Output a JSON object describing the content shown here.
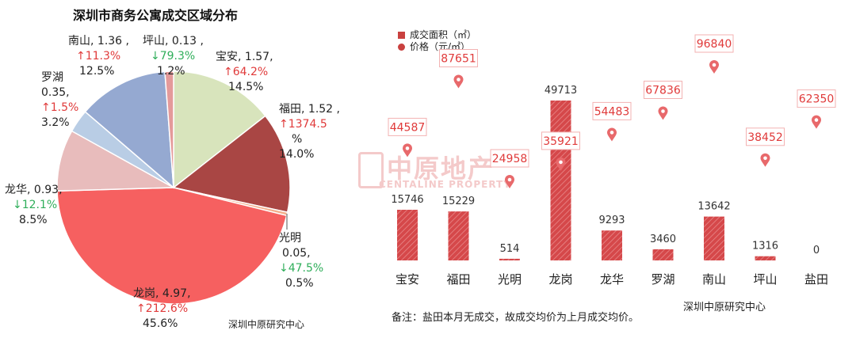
{
  "pie": {
    "title": "深圳市商务公寓成交区域分布",
    "source": "深圳中原研究中心",
    "slices": [
      {
        "name": "宝安",
        "value": 1.57,
        "change": "64.2%",
        "dir": "up",
        "pct": "14.5%",
        "color": "#d8e4bc"
      },
      {
        "name": "福田",
        "value": 1.52,
        "change": "1374.5",
        "change_tail": "%",
        "dir": "up",
        "pct": "14.0%",
        "color": "#a94644"
      },
      {
        "name": "光明",
        "value": 0.05,
        "change": "47.5%",
        "dir": "down",
        "pct": "0.5%",
        "color": "#f4ae8b"
      },
      {
        "name": "龙岗",
        "value": 4.97,
        "change": "212.6%",
        "dir": "up",
        "pct": "45.6%",
        "color": "#f66060"
      },
      {
        "name": "龙华",
        "value": 0.93,
        "change": "12.1%",
        "dir": "down",
        "pct": "8.5%",
        "color": "#e8bcbc"
      },
      {
        "name": "罗湖",
        "value": 0.35,
        "change": "1.5%",
        "dir": "up",
        "pct": "3.2%",
        "color": "#b9cde5"
      },
      {
        "name": "南山",
        "value": 1.36,
        "change": "11.3%",
        "dir": "up",
        "pct": "12.5%",
        "color": "#95a9d1"
      },
      {
        "name": "坪山",
        "value": 0.13,
        "change": "79.3%",
        "dir": "down",
        "pct": "1.2%",
        "color": "#e49a9a"
      }
    ]
  },
  "bar": {
    "legend_area": "成交面积（㎡）",
    "legend_price": "价格（元/㎡）",
    "watermark": "中原地产",
    "watermark_en": "CENTALINE PROPERTY",
    "note": "备注：盐田本月无成交，故成交均价为上月成交均价。",
    "source": "深圳中原研究中心"
  },
  "chart_data": {
    "type": "bar",
    "categories": [
      "宝安",
      "福田",
      "光明",
      "龙岗",
      "龙华",
      "罗湖",
      "南山",
      "坪山",
      "盐田"
    ],
    "series": [
      {
        "name": "成交面积（㎡）",
        "type": "bar",
        "values": [
          15746,
          15229,
          514,
          49713,
          9293,
          3460,
          13642,
          1316,
          0
        ]
      },
      {
        "name": "价格（元/㎡）",
        "type": "scatter",
        "values": [
          44587,
          87651,
          24958,
          35921,
          54483,
          67836,
          96840,
          38452,
          62350
        ]
      }
    ],
    "pie_series": {
      "name": "成交区域分布",
      "categories": [
        "宝安",
        "福田",
        "光明",
        "龙岗",
        "龙华",
        "罗湖",
        "南山",
        "坪山"
      ],
      "values": [
        1.57,
        1.52,
        0.05,
        4.97,
        0.93,
        0.35,
        1.36,
        0.13
      ],
      "shares_pct": [
        14.5,
        14.0,
        0.5,
        45.6,
        8.5,
        3.2,
        12.5,
        1.2
      ]
    },
    "colors": {
      "bar": "#d5484a",
      "pin": "#e8696b",
      "label_border": "#f3b2b2",
      "label_text": "#e03a3a"
    }
  }
}
